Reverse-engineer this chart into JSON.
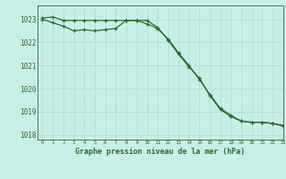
{
  "line1_x": [
    0,
    1,
    2,
    3,
    4,
    5,
    6,
    7,
    8,
    9,
    10,
    11,
    12,
    13,
    14,
    15,
    16,
    17,
    18,
    19,
    20,
    21,
    22,
    23
  ],
  "line1_y": [
    1023.05,
    1023.1,
    1022.95,
    1022.95,
    1022.95,
    1022.95,
    1022.95,
    1022.95,
    1022.95,
    1022.95,
    1022.8,
    1022.6,
    1022.15,
    1021.55,
    1021.0,
    1020.4,
    1019.75,
    1019.15,
    1018.85,
    1018.6,
    1018.55,
    1018.55,
    1018.5,
    1018.42
  ],
  "line2_x": [
    0,
    1,
    2,
    3,
    4,
    5,
    6,
    7,
    8,
    9,
    10,
    11,
    12,
    13,
    14,
    15,
    16,
    17,
    18,
    19,
    20,
    21,
    22,
    23
  ],
  "line2_y": [
    1023.0,
    1022.85,
    1022.7,
    1022.5,
    1022.55,
    1022.5,
    1022.55,
    1022.6,
    1022.95,
    1022.95,
    1022.95,
    1022.65,
    1022.1,
    1021.5,
    1020.95,
    1020.45,
    1019.7,
    1019.1,
    1018.8,
    1018.6,
    1018.55,
    1018.55,
    1018.5,
    1018.38
  ],
  "line_color": "#2d6a2d",
  "bg_color": "#c8eee8",
  "grid_color": "#b0d8d0",
  "xlabel": "Graphe pression niveau de la mer (hPa)",
  "xlim": [
    -0.5,
    23
  ],
  "ylim": [
    1017.8,
    1023.6
  ],
  "yticks": [
    1018,
    1019,
    1020,
    1021,
    1022,
    1023
  ],
  "xticks": [
    0,
    1,
    2,
    3,
    4,
    5,
    6,
    7,
    8,
    9,
    10,
    11,
    12,
    13,
    14,
    15,
    16,
    17,
    18,
    19,
    20,
    21,
    22,
    23
  ]
}
